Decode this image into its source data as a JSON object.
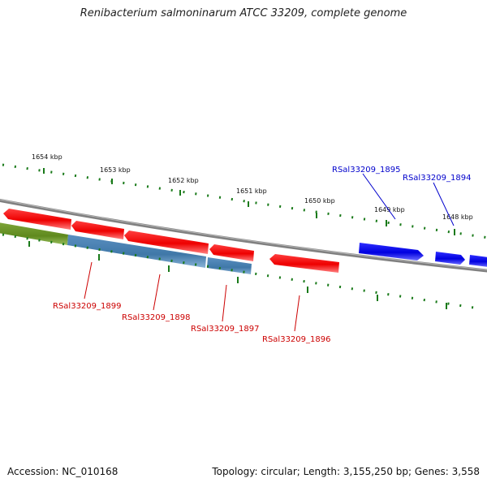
{
  "title": "Renibacterium salmoninarum ATCC 33209, complete genome",
  "footer": {
    "accession": "Accession: NC_010168",
    "stats": "Topology: circular; Length: 3,155,250 bp; Genes: 3,558"
  },
  "ruler": [
    "1654 kbp",
    "1653 kbp",
    "1652 kbp",
    "1651 kbp",
    "1650 kbp",
    "1649 kbp",
    "1648 kbp"
  ],
  "genes": {
    "forward": [
      "RSal33209_1895",
      "RSal33209_1894"
    ],
    "reverse": [
      "RSal33209_1899",
      "RSal33209_1898",
      "RSal33209_1897",
      "RSal33209_1896"
    ]
  },
  "colors": {
    "forward_cds": "#0000ee",
    "reverse_cds": "#ee0000",
    "blue_feature": "#4a7fb0",
    "green_feature": "#6b8e23",
    "backbone": "#808080",
    "ticks": "#1a7a1a",
    "forward_label": "#0000cc",
    "reverse_label": "#cc0000"
  }
}
